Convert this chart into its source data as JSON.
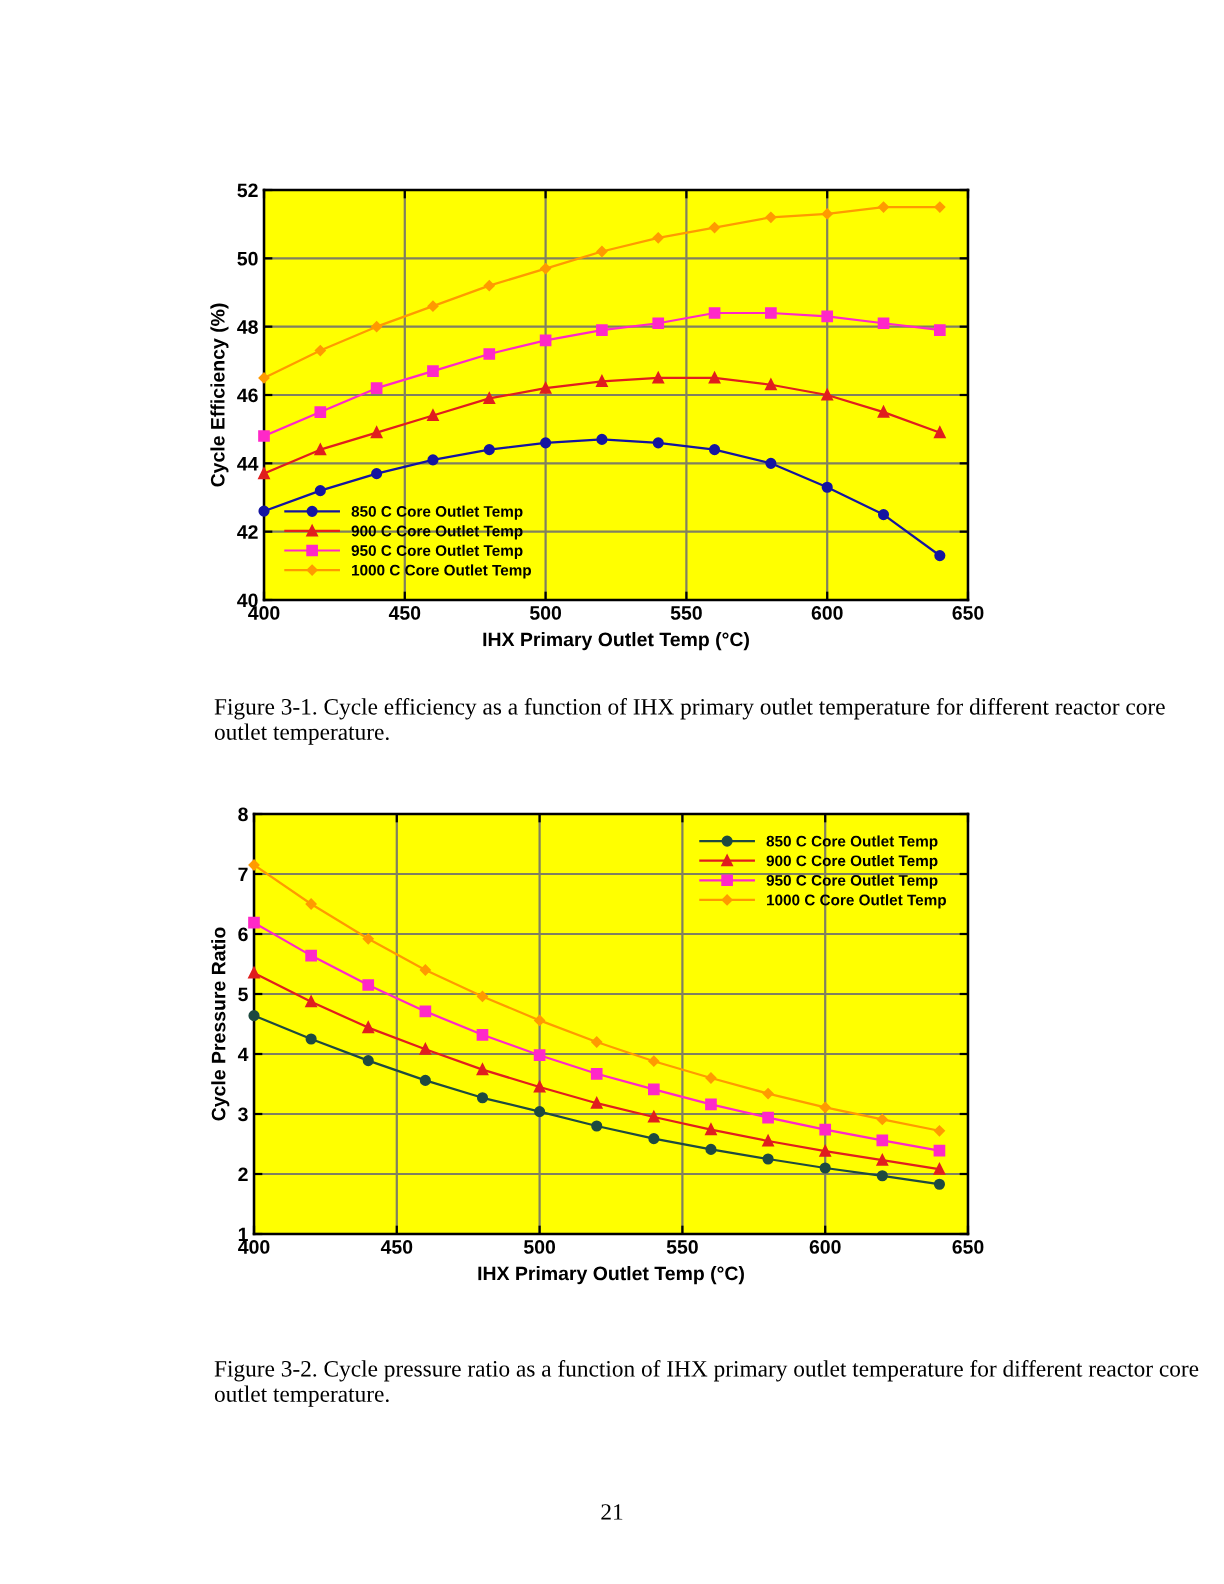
{
  "chart_data": [
    {
      "type": "line",
      "x": [
        400,
        420,
        440,
        460,
        480,
        500,
        520,
        540,
        560,
        580,
        600,
        620,
        640
      ],
      "xlabel": "IHX Primary Outlet Temp (°C)",
      "ylabel": "Cycle Efficiency (%)",
      "xlim": [
        400,
        650
      ],
      "ylim": [
        40,
        52
      ],
      "xticks": [
        400,
        450,
        500,
        550,
        600,
        650
      ],
      "yticks": [
        40,
        42,
        44,
        46,
        48,
        50,
        52
      ],
      "grid": true,
      "legend": "lower left",
      "line_style": "solid",
      "annotations": [
        "Figure 3-1. Cycle efficiency as a function of IHX primary outlet temperature for different reactor core outlet temperature."
      ],
      "series": [
        {
          "name": "850 C Core Outlet Temp",
          "color": "#1414a0",
          "marker": "circle",
          "values": [
            42.6,
            43.2,
            43.7,
            44.1,
            44.4,
            44.6,
            44.7,
            44.6,
            44.4,
            44.0,
            43.3,
            42.5,
            41.3
          ]
        },
        {
          "name": "900 C Core Outlet Temp",
          "color": "#e01e1e",
          "marker": "triangle",
          "values": [
            43.7,
            44.4,
            44.9,
            45.4,
            45.9,
            46.2,
            46.4,
            46.5,
            46.5,
            46.3,
            46.0,
            45.5,
            44.9
          ]
        },
        {
          "name": "950 C Core Outlet Temp",
          "color": "#ff28c8",
          "marker": "square",
          "values": [
            44.8,
            45.5,
            46.2,
            46.7,
            47.2,
            47.6,
            47.9,
            48.1,
            48.4,
            48.4,
            48.3,
            48.1,
            47.9
          ]
        },
        {
          "name": "1000 C Core Outlet Temp",
          "color": "#ff9a00",
          "marker": "diamond",
          "values": [
            46.5,
            47.3,
            48.0,
            48.6,
            49.2,
            49.7,
            50.2,
            50.6,
            50.9,
            51.2,
            51.3,
            51.5,
            51.5
          ]
        }
      ]
    },
    {
      "type": "line",
      "x": [
        400,
        420,
        440,
        460,
        480,
        500,
        520,
        540,
        560,
        580,
        600,
        620,
        640
      ],
      "xlabel": "IHX Primary Outlet Temp (°C)",
      "ylabel": "Cycle Pressure Ratio",
      "xlim": [
        400,
        650
      ],
      "ylim": [
        1,
        8
      ],
      "xticks": [
        400,
        450,
        500,
        550,
        600,
        650
      ],
      "yticks": [
        1,
        2,
        3,
        4,
        5,
        6,
        7,
        8
      ],
      "grid": true,
      "legend": "upper right",
      "line_style": "solid",
      "annotations": [
        "Figure 3-2. Cycle pressure ratio as a function of IHX primary outlet temperature for different reactor core outlet temperature.",
        "21"
      ],
      "series": [
        {
          "name": "850 C Core Outlet Temp",
          "color": "#1e4a40",
          "marker": "circle",
          "values": [
            4.64,
            4.25,
            3.89,
            3.56,
            3.27,
            3.04,
            2.8,
            2.59,
            2.41,
            2.25,
            2.1,
            1.97,
            1.83
          ]
        },
        {
          "name": "900 C Core Outlet Temp",
          "color": "#e01e1e",
          "marker": "triangle",
          "values": [
            5.35,
            4.87,
            4.44,
            4.08,
            3.74,
            3.45,
            3.18,
            2.95,
            2.74,
            2.55,
            2.38,
            2.23,
            2.08
          ]
        },
        {
          "name": "950 C Core Outlet Temp",
          "color": "#ff28c8",
          "marker": "square",
          "values": [
            6.19,
            5.64,
            5.15,
            4.71,
            4.32,
            3.98,
            3.67,
            3.41,
            3.16,
            2.94,
            2.74,
            2.56,
            2.39
          ]
        },
        {
          "name": "1000 C Core Outlet Temp",
          "color": "#ff9a00",
          "marker": "diamond",
          "values": [
            7.15,
            6.5,
            5.92,
            5.4,
            4.96,
            4.56,
            4.2,
            3.88,
            3.6,
            3.34,
            3.11,
            2.91,
            2.72
          ]
        }
      ]
    }
  ]
}
